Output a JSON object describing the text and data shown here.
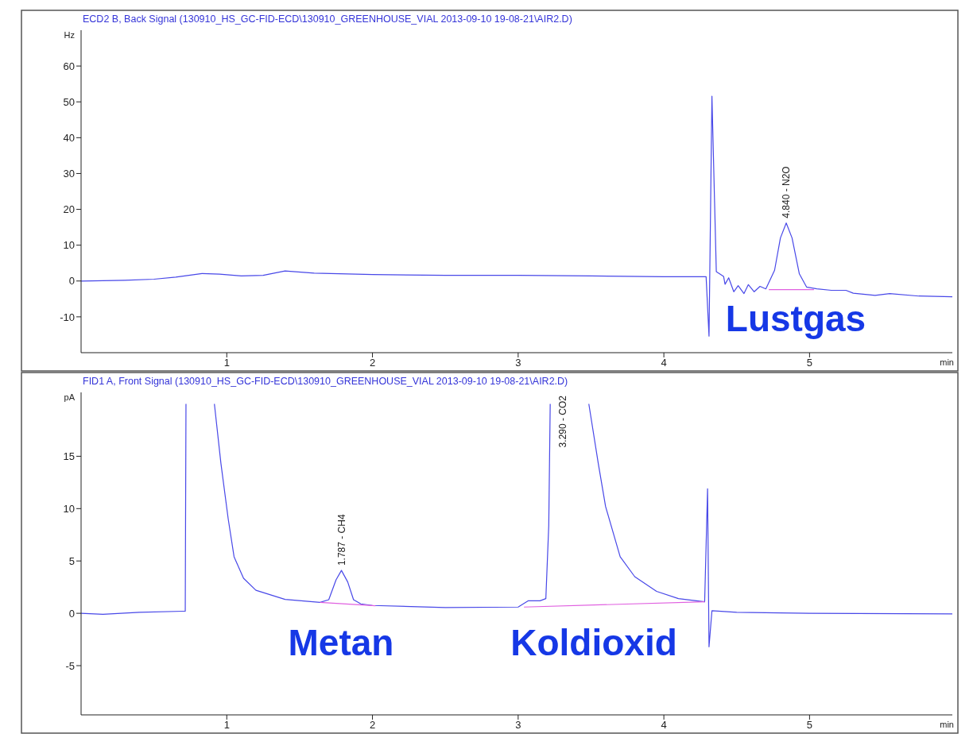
{
  "chart_data": [
    {
      "type": "line",
      "title": "ECD2 B, Back Signal (130910_HS_GC-FID-ECD\\130910_GREENHOUSE_VIAL 2013-09-10 19-08-21\\AIR2.D)",
      "xlabel": "min",
      "ylabel": "Hz",
      "xlim": [
        0,
        5.98
      ],
      "xticks": [
        1,
        2,
        3,
        4,
        5
      ],
      "ylim": [
        -20,
        70
      ],
      "yticks": [
        -10,
        0,
        10,
        20,
        30,
        40,
        50,
        60
      ],
      "series": [
        {
          "color": "#4848e8",
          "x": [
            0,
            0.3,
            0.5,
            0.65,
            0.83,
            0.95,
            1.1,
            1.25,
            1.4,
            1.6,
            2.0,
            2.5,
            3.0,
            3.5,
            4.0,
            4.29,
            4.31,
            4.33,
            4.36,
            4.41,
            4.42,
            4.445,
            4.48,
            4.51,
            4.55,
            4.58,
            4.62,
            4.66,
            4.7,
            4.76,
            4.8,
            4.84,
            4.88,
            4.93,
            4.98,
            5.05,
            5.15,
            5.25,
            5.3,
            5.45,
            5.55,
            5.75,
            5.98
          ],
          "values": [
            0,
            0.2,
            0.5,
            1.1,
            2.1,
            1.9,
            1.4,
            1.6,
            2.8,
            2.2,
            1.8,
            1.6,
            1.6,
            1.4,
            1.2,
            1.2,
            -15.4,
            51.6,
            2.6,
            1.3,
            -0.9,
            0.9,
            -3,
            -1.3,
            -3.5,
            -1,
            -3,
            -1.5,
            -2.2,
            3,
            12,
            16.2,
            12,
            2,
            -1.7,
            -2.2,
            -2.6,
            -2.6,
            -3.4,
            -4,
            -3.5,
            -4.2,
            -4.4
          ]
        },
        {
          "color": "#e060e0",
          "x": [
            4.72,
            5.03
          ],
          "values": [
            -2.4,
            -2.4
          ]
        }
      ],
      "annotations": [
        {
          "text": "4.840 -  N2O",
          "x": 4.84,
          "y": 16.2
        },
        "Lustgas"
      ]
    },
    {
      "type": "line",
      "title": "FID1 A, Front Signal (130910_HS_GC-FID-ECD\\130910_GREENHOUSE_VIAL 2013-09-10 19-08-21\\AIR2.D)",
      "xlabel": "min",
      "ylabel": "pA",
      "xlim": [
        0,
        5.98
      ],
      "xticks": [
        1,
        2,
        3,
        4,
        5
      ],
      "ylim": [
        -9.7,
        21.1
      ],
      "yticks": [
        -5,
        0,
        5,
        10,
        15
      ],
      "series": [
        {
          "color": "#4848e8",
          "x": [
            0,
            0.15,
            0.4,
            0.7,
            0.715,
            0.72,
            0.8,
            0.915,
            0.96,
            1.01,
            1.05,
            1.115,
            1.2,
            1.4,
            1.64,
            1.7,
            1.75,
            1.787,
            1.83,
            1.87,
            1.92,
            2.0,
            2.5,
            3.0,
            3.07,
            3.15,
            3.19,
            3.21,
            3.22,
            3.35,
            3.485,
            3.55,
            3.6,
            3.7,
            3.8,
            3.95,
            4.1,
            4.28,
            4.3,
            4.31,
            4.33,
            4.5,
            5.0,
            5.98
          ],
          "values": [
            0,
            -0.1,
            0.1,
            0.2,
            0.2,
            20,
            null,
            20,
            14.3,
            9,
            5.4,
            3.35,
            2.2,
            1.33,
            1.04,
            1.3,
            3.2,
            4.1,
            3,
            1.3,
            0.9,
            0.75,
            0.55,
            0.6,
            1.2,
            1.2,
            1.4,
            8.4,
            20,
            null,
            20,
            14.3,
            10.2,
            5.4,
            3.5,
            2.1,
            1.4,
            1.1,
            11.9,
            -3.2,
            0.24,
            0.1,
            0,
            -0.05
          ]
        },
        {
          "color": "#e060e0",
          "x": [
            1.64,
            2.02
          ],
          "values": [
            1.04,
            0.72
          ]
        },
        {
          "color": "#e060e0",
          "x": [
            3.04,
            4.28
          ],
          "values": [
            0.6,
            1.1
          ]
        }
      ],
      "annotations": [
        {
          "text": "1.787 -  CH4",
          "x": 1.787,
          "y": 4.1
        },
        "3.290 -  CO2",
        "Metan",
        "Koldioxid"
      ]
    }
  ]
}
